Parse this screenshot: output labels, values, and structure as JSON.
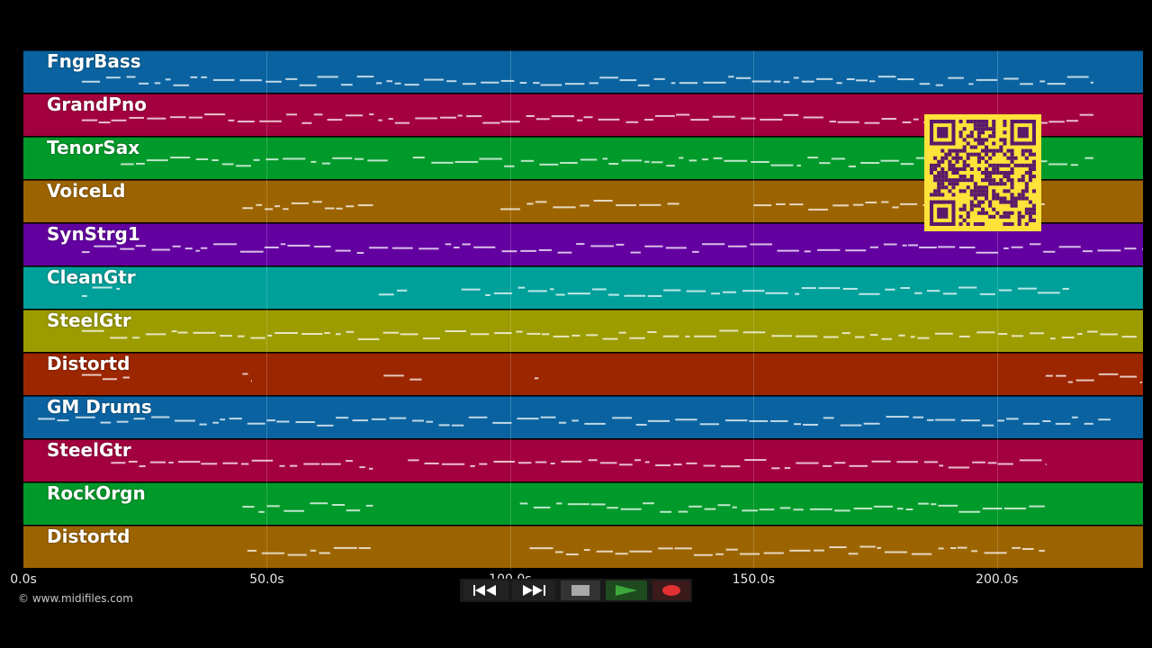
{
  "tracks": [
    {
      "name": "FngrBass",
      "color": "#0a63a0"
    },
    {
      "name": "GrandPno",
      "color": "#a3003f"
    },
    {
      "name": "TenorSax",
      "color": "#009a2a"
    },
    {
      "name": "VoiceLd",
      "color": "#9c6400"
    },
    {
      "name": "SynStrg1",
      "color": "#6300a0"
    },
    {
      "name": "CleanGtr",
      "color": "#00a09a"
    },
    {
      "name": "SteelGtr",
      "color": "#9c9c00"
    },
    {
      "name": "Distortd",
      "color": "#9c2600"
    },
    {
      "name": "GM Drums",
      "color": "#0a63a0"
    },
    {
      "name": "SteelGtr",
      "color": "#a3003f"
    },
    {
      "name": "RockOrgn",
      "color": "#009a2a"
    },
    {
      "name": "Distortd",
      "color": "#9c6400"
    }
  ],
  "timeline": {
    "max_seconds": 230,
    "ticks": [
      {
        "value": 0,
        "label": "0.0s"
      },
      {
        "value": 50,
        "label": "50.0s"
      },
      {
        "value": 100,
        "label": "100.0s"
      },
      {
        "value": 150,
        "label": "150.0s"
      },
      {
        "value": 200,
        "label": "200.0s"
      }
    ]
  },
  "copyright": "© www.midifiles.com",
  "transport": {
    "rewind": {
      "icon": "rewind-icon"
    },
    "fast_forward": {
      "icon": "fast-forward-icon"
    },
    "stop": {
      "icon": "stop-icon"
    },
    "play": {
      "icon": "play-icon",
      "color": "#3ca83c"
    },
    "record": {
      "icon": "record-icon",
      "color": "#e03030"
    }
  },
  "qr_code": {
    "icon": "qr-code-icon",
    "color": "#ffe23a",
    "module_color": "#5a1a6a"
  }
}
